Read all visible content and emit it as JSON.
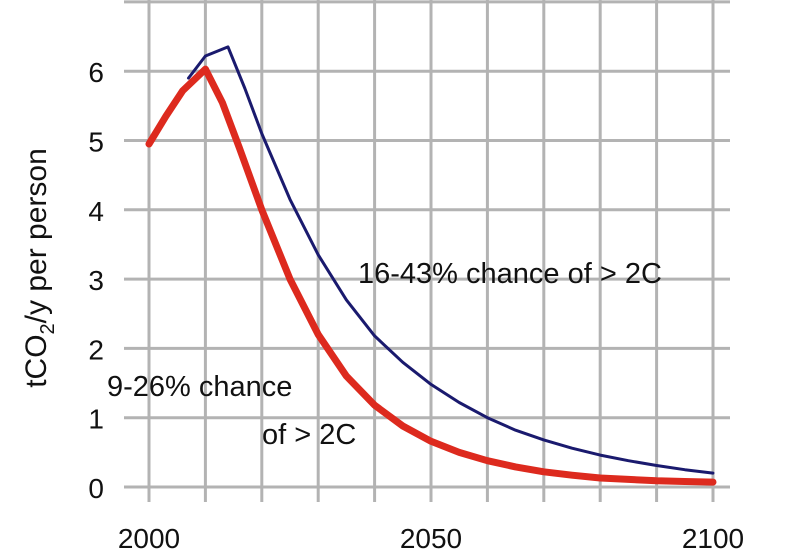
{
  "chart_data": {
    "type": "line",
    "title": "",
    "xlabel": "",
    "ylabel": {
      "prefix": "tCO",
      "subscript": "2",
      "suffix": "/y per person"
    },
    "xlim": [
      2000,
      2100
    ],
    "ylim": [
      0,
      6.5
    ],
    "x_ticks": [
      2000,
      2050,
      2100
    ],
    "y_ticks": [
      0,
      1,
      2,
      3,
      4,
      5,
      6
    ],
    "grid": true,
    "legend": "none",
    "series": [
      {
        "key": "higher-emissions",
        "color": "#1a1a6e",
        "points": [
          [
            2007,
            5.9
          ],
          [
            2010,
            6.22
          ],
          [
            2014,
            6.35
          ],
          [
            2017,
            5.75
          ],
          [
            2020,
            5.1
          ],
          [
            2025,
            4.15
          ],
          [
            2030,
            3.35
          ],
          [
            2035,
            2.7
          ],
          [
            2040,
            2.18
          ],
          [
            2045,
            1.8
          ],
          [
            2050,
            1.48
          ],
          [
            2055,
            1.22
          ],
          [
            2060,
            1.0
          ],
          [
            2065,
            0.82
          ],
          [
            2070,
            0.68
          ],
          [
            2075,
            0.56
          ],
          [
            2080,
            0.46
          ],
          [
            2085,
            0.38
          ],
          [
            2090,
            0.31
          ],
          [
            2095,
            0.25
          ],
          [
            2100,
            0.2
          ]
        ]
      },
      {
        "key": "lower-emissions",
        "color": "#dd2a1e",
        "points": [
          [
            2000,
            4.95
          ],
          [
            2003,
            5.35
          ],
          [
            2006,
            5.72
          ],
          [
            2010,
            6.03
          ],
          [
            2013,
            5.55
          ],
          [
            2016,
            4.9
          ],
          [
            2020,
            4.0
          ],
          [
            2025,
            3.0
          ],
          [
            2030,
            2.2
          ],
          [
            2035,
            1.6
          ],
          [
            2040,
            1.18
          ],
          [
            2045,
            0.88
          ],
          [
            2050,
            0.66
          ],
          [
            2055,
            0.5
          ],
          [
            2060,
            0.38
          ],
          [
            2065,
            0.29
          ],
          [
            2070,
            0.22
          ],
          [
            2075,
            0.17
          ],
          [
            2080,
            0.13
          ],
          [
            2085,
            0.11
          ],
          [
            2090,
            0.09
          ],
          [
            2095,
            0.08
          ],
          [
            2100,
            0.07
          ]
        ]
      }
    ],
    "annotations": {
      "upper": "16-43% chance of > 2C",
      "lower_line1": "9-26% chance",
      "lower_line2": "of > 2C"
    }
  }
}
